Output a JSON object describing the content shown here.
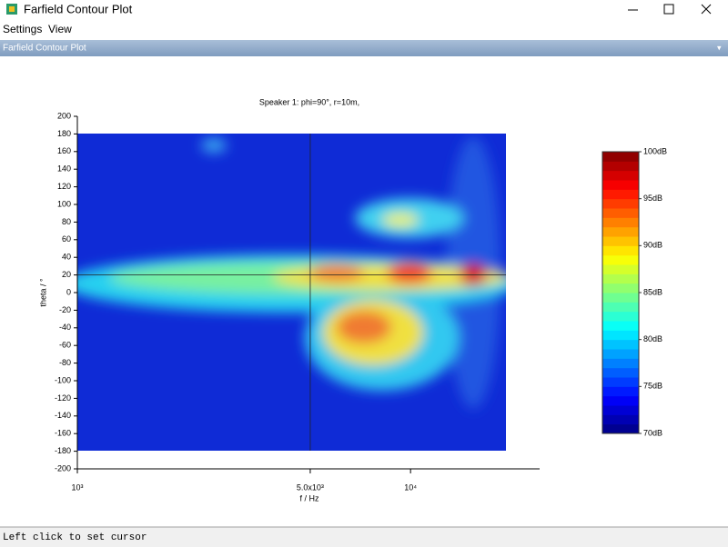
{
  "window": {
    "title": "Farfield Contour Plot",
    "menu": [
      "Settings",
      "View"
    ],
    "panel_title": "Farfield Contour Plot",
    "status": "Left click to set cursor"
  },
  "chart_data": {
    "type": "heatmap",
    "title": "Speaker 1: phi=90°, r=10m,",
    "xlabel": "f / Hz",
    "ylabel": "theta / °",
    "xscale": "log",
    "xlim": [
      1000,
      24400
    ],
    "xticks": [
      {
        "value": 1000,
        "label": "10³"
      },
      {
        "value": 5000,
        "label": "5.0x10³"
      },
      {
        "value": 10000,
        "label": "10⁴"
      }
    ],
    "ylim": [
      -200,
      200
    ],
    "yticks": [
      -200,
      -180,
      -160,
      -140,
      -120,
      -100,
      -80,
      -60,
      -40,
      -20,
      0,
      20,
      40,
      60,
      80,
      100,
      120,
      140,
      160,
      180,
      200
    ],
    "cursor": {
      "x": 5000,
      "y": 20
    },
    "colorbar": {
      "lim": [
        70,
        100
      ],
      "ticks": [
        {
          "value": 70,
          "label": "70dB"
        },
        {
          "value": 75,
          "label": "75dB"
        },
        {
          "value": 80,
          "label": "80dB"
        },
        {
          "value": 85,
          "label": "85dB"
        },
        {
          "value": 90,
          "label": "90dB"
        },
        {
          "value": 95,
          "label": "95dB"
        },
        {
          "value": 100,
          "label": "100dB"
        }
      ]
    }
  }
}
